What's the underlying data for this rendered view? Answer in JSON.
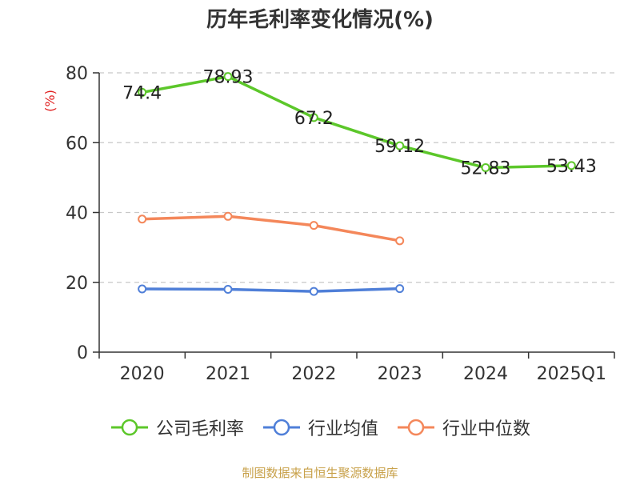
{
  "chart_data": {
    "type": "line",
    "title": "历年毛利率变化情况(%)",
    "ylabel": "(%)",
    "xlabel": "",
    "categories": [
      "2020",
      "2021",
      "2022",
      "2023",
      "2024",
      "2025Q1"
    ],
    "ylim": [
      0,
      80
    ],
    "yticks": [
      "0",
      "20",
      "40",
      "60",
      "80"
    ],
    "grid": true,
    "legend_position": "bottom",
    "series": [
      {
        "name": "公司毛利率",
        "color": "#5cc72a",
        "values": [
          74.4,
          78.93,
          67.2,
          59.12,
          52.83,
          53.43
        ],
        "labels": [
          "74.4",
          "78.93",
          "67.2",
          "59.12",
          "52.83",
          "53.43"
        ]
      },
      {
        "name": "行业均值",
        "color": "#4f7fd8",
        "values": [
          18.1,
          18.0,
          17.4,
          18.2,
          null,
          null
        ]
      },
      {
        "name": "行业中位数",
        "color": "#f4875a",
        "values": [
          38.1,
          38.9,
          36.3,
          31.9,
          null,
          null
        ]
      }
    ]
  },
  "source_note": "制图数据来自恒生聚源数据库"
}
